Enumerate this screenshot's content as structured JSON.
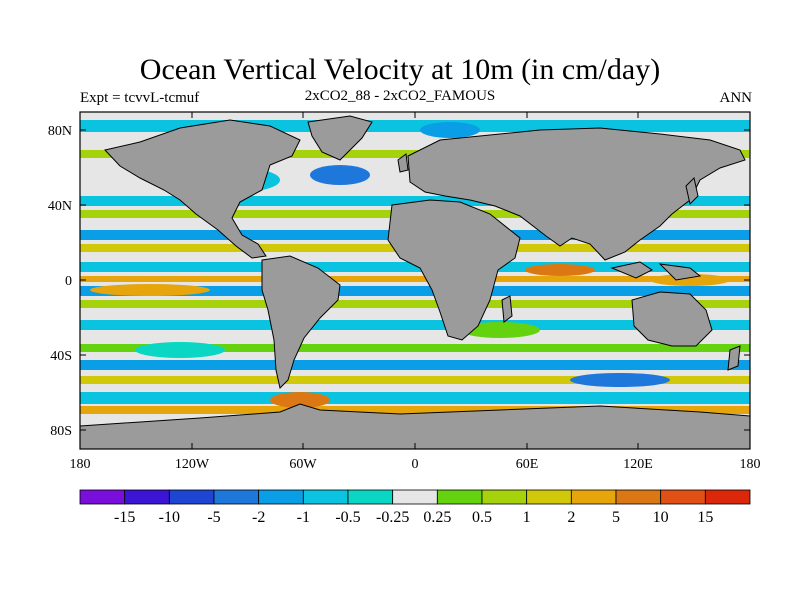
{
  "title": "Ocean Vertical Velocity at 10m (in cm/day)",
  "subtitle_left": "Expt = tcvvL-tcmuf",
  "subtitle_center": "2xCO2_88 - 2xCO2_FAMOUS",
  "subtitle_right": "ANN",
  "y_ticks": [
    "80N",
    "40N",
    "0",
    "40S",
    "80S"
  ],
  "x_ticks": [
    "180",
    "120W",
    "60W",
    "0",
    "60E",
    "120E",
    "180"
  ],
  "colorbar": {
    "colors": [
      "#7a0fdc",
      "#3c14d6",
      "#1e46d2",
      "#1e78dc",
      "#0a9ee6",
      "#0ac3e1",
      "#0ad7c3",
      "#e6e6e6",
      "#64d20f",
      "#a5d20a",
      "#d2c80a",
      "#e6a50a",
      "#dc7814",
      "#e15014",
      "#dc280a"
    ],
    "labels": [
      "-15",
      "-10",
      "-5",
      "-2",
      "-1",
      "-0.5",
      "-0.25",
      "0.25",
      "0.5",
      "1",
      "2",
      "5",
      "10",
      "15"
    ]
  },
  "land_color": "#9b9b9b"
}
